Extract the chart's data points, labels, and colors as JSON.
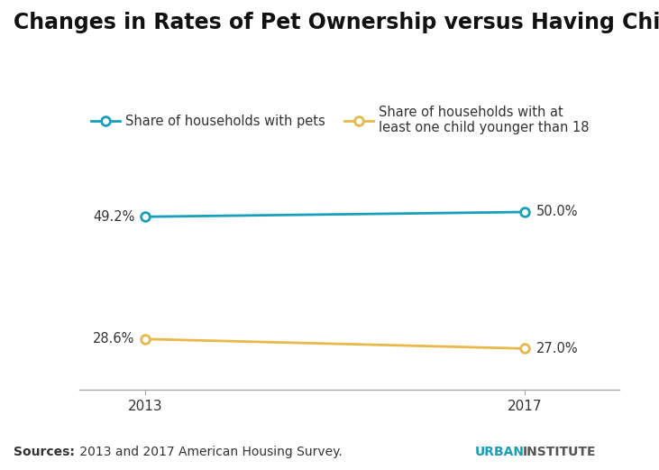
{
  "title": "Changes in Rates of Pet Ownership versus Having Children",
  "years": [
    2013,
    2017
  ],
  "pets_values": [
    49.2,
    50.0
  ],
  "children_values": [
    28.6,
    27.0
  ],
  "pets_color": "#1a9fbb",
  "children_color": "#e8b84b",
  "pets_label": "Share of households with pets",
  "children_label": "Share of households with at\nleast one child younger than 18",
  "pets_annotations": [
    "49.2%",
    "50.0%"
  ],
  "children_annotations": [
    "28.6%",
    "27.0%"
  ],
  "source_bold": "Sources:",
  "source_rest": " 2013 and 2017 American Housing Survey.",
  "urban_text": "URBAN",
  "institute_text": "INSTITUTE",
  "urban_color": "#1a9fbb",
  "institute_color": "#555555",
  "background_color": "#ffffff",
  "title_fontsize": 17,
  "label_fontsize": 10.5,
  "annotation_fontsize": 10.5,
  "tick_fontsize": 11,
  "source_fontsize": 10
}
